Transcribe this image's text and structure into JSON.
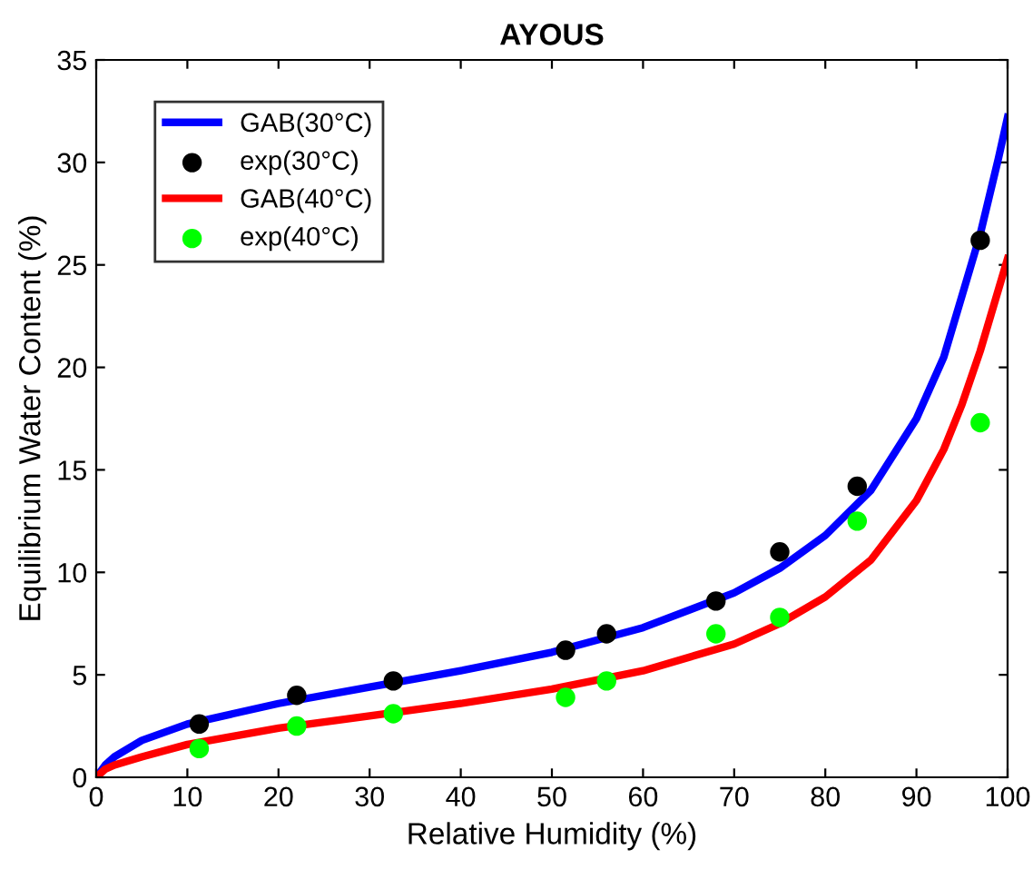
{
  "chart_data": {
    "type": "line",
    "title": "AYOUS",
    "xlabel": "Relative Humidity (%)",
    "ylabel": "Equilibrium Water Content (%)",
    "xlim": [
      0,
      100
    ],
    "ylim": [
      0,
      35
    ],
    "xticks": [
      0,
      10,
      20,
      30,
      40,
      50,
      60,
      70,
      80,
      90,
      100
    ],
    "yticks": [
      0,
      5,
      10,
      15,
      20,
      25,
      30,
      35
    ],
    "grid": false,
    "legend": "top left",
    "series": [
      {
        "name": "GAB(30°C)",
        "color": "#0000ff",
        "marker": "none",
        "line_style": "solid",
        "x": [
          0,
          1,
          2,
          5,
          10,
          15,
          20,
          30,
          40,
          50,
          60,
          70,
          75,
          80,
          85,
          90,
          93,
          95,
          97,
          99,
          100
        ],
        "values": [
          0,
          0.6,
          1.0,
          1.8,
          2.6,
          3.1,
          3.6,
          4.4,
          5.2,
          6.1,
          7.3,
          9.0,
          10.2,
          11.8,
          14.0,
          17.5,
          20.5,
          23.5,
          26.5,
          30.2,
          32.2
        ]
      },
      {
        "name": "exp(30°C)",
        "type": "scatter",
        "color": "#000000",
        "marker": "circle",
        "x": [
          11.3,
          22,
          32.6,
          51.5,
          56,
          68,
          75,
          83.5,
          97
        ],
        "values": [
          2.6,
          4.0,
          4.7,
          6.2,
          7.0,
          8.6,
          11.0,
          14.2,
          26.2
        ]
      },
      {
        "name": "GAB(40°C)",
        "color": "#ff0000",
        "marker": "none",
        "line_style": "solid",
        "x": [
          0,
          1,
          2,
          5,
          10,
          15,
          20,
          30,
          40,
          50,
          60,
          70,
          75,
          80,
          85,
          90,
          93,
          95,
          97,
          99,
          100
        ],
        "values": [
          0,
          0.4,
          0.6,
          1.0,
          1.6,
          2.0,
          2.4,
          3.0,
          3.6,
          4.3,
          5.2,
          6.5,
          7.5,
          8.8,
          10.6,
          13.5,
          16.0,
          18.2,
          20.8,
          23.8,
          25.3
        ]
      },
      {
        "name": "exp(40°C)",
        "type": "scatter",
        "color": "#00ff00",
        "marker": "circle",
        "x": [
          11.3,
          22,
          32.6,
          51.5,
          56,
          68,
          75,
          83.5,
          97
        ],
        "values": [
          1.4,
          2.5,
          3.1,
          3.9,
          4.7,
          7.0,
          7.8,
          12.5,
          17.3
        ]
      }
    ]
  }
}
